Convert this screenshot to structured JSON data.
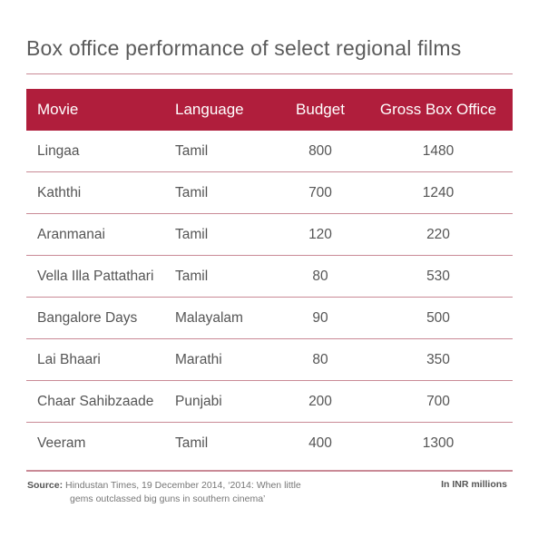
{
  "title": "Box office performance of select regional films",
  "header": {
    "movie": "Movie",
    "language": "Language",
    "budget": "Budget",
    "gross": "Gross Box Office"
  },
  "rows": [
    {
      "movie": "Lingaa",
      "language": "Tamil",
      "budget": "800",
      "gross": "1480"
    },
    {
      "movie": "Kaththi",
      "language": "Tamil",
      "budget": "700",
      "gross": "1240"
    },
    {
      "movie": "Aranmanai",
      "language": "Tamil",
      "budget": "120",
      "gross": "220"
    },
    {
      "movie": "Vella Illa Pattathari",
      "language": "Tamil",
      "budget": "80",
      "gross": "530"
    },
    {
      "movie": "Bangalore Days",
      "language": "Malayalam",
      "budget": "90",
      "gross": "500"
    },
    {
      "movie": "Lai Bhaari",
      "language": "Marathi",
      "budget": "80",
      "gross": "350"
    },
    {
      "movie": "Chaar Sahibzaade",
      "language": "Punjabi",
      "budget": "200",
      "gross": "700"
    },
    {
      "movie": "Veeram",
      "language": "Tamil",
      "budget": "400",
      "gross": "1300"
    }
  ],
  "footer": {
    "source_label": "Source:",
    "source_line1": "Hindustan Times, 19 December 2014, ‘2014: When little",
    "source_line2": "gems outclassed big guns in southern cinema’",
    "unit": "In INR millions"
  },
  "colors": {
    "header_bg": "#b01e3c",
    "rule": "#c98a96",
    "text": "#555555"
  }
}
